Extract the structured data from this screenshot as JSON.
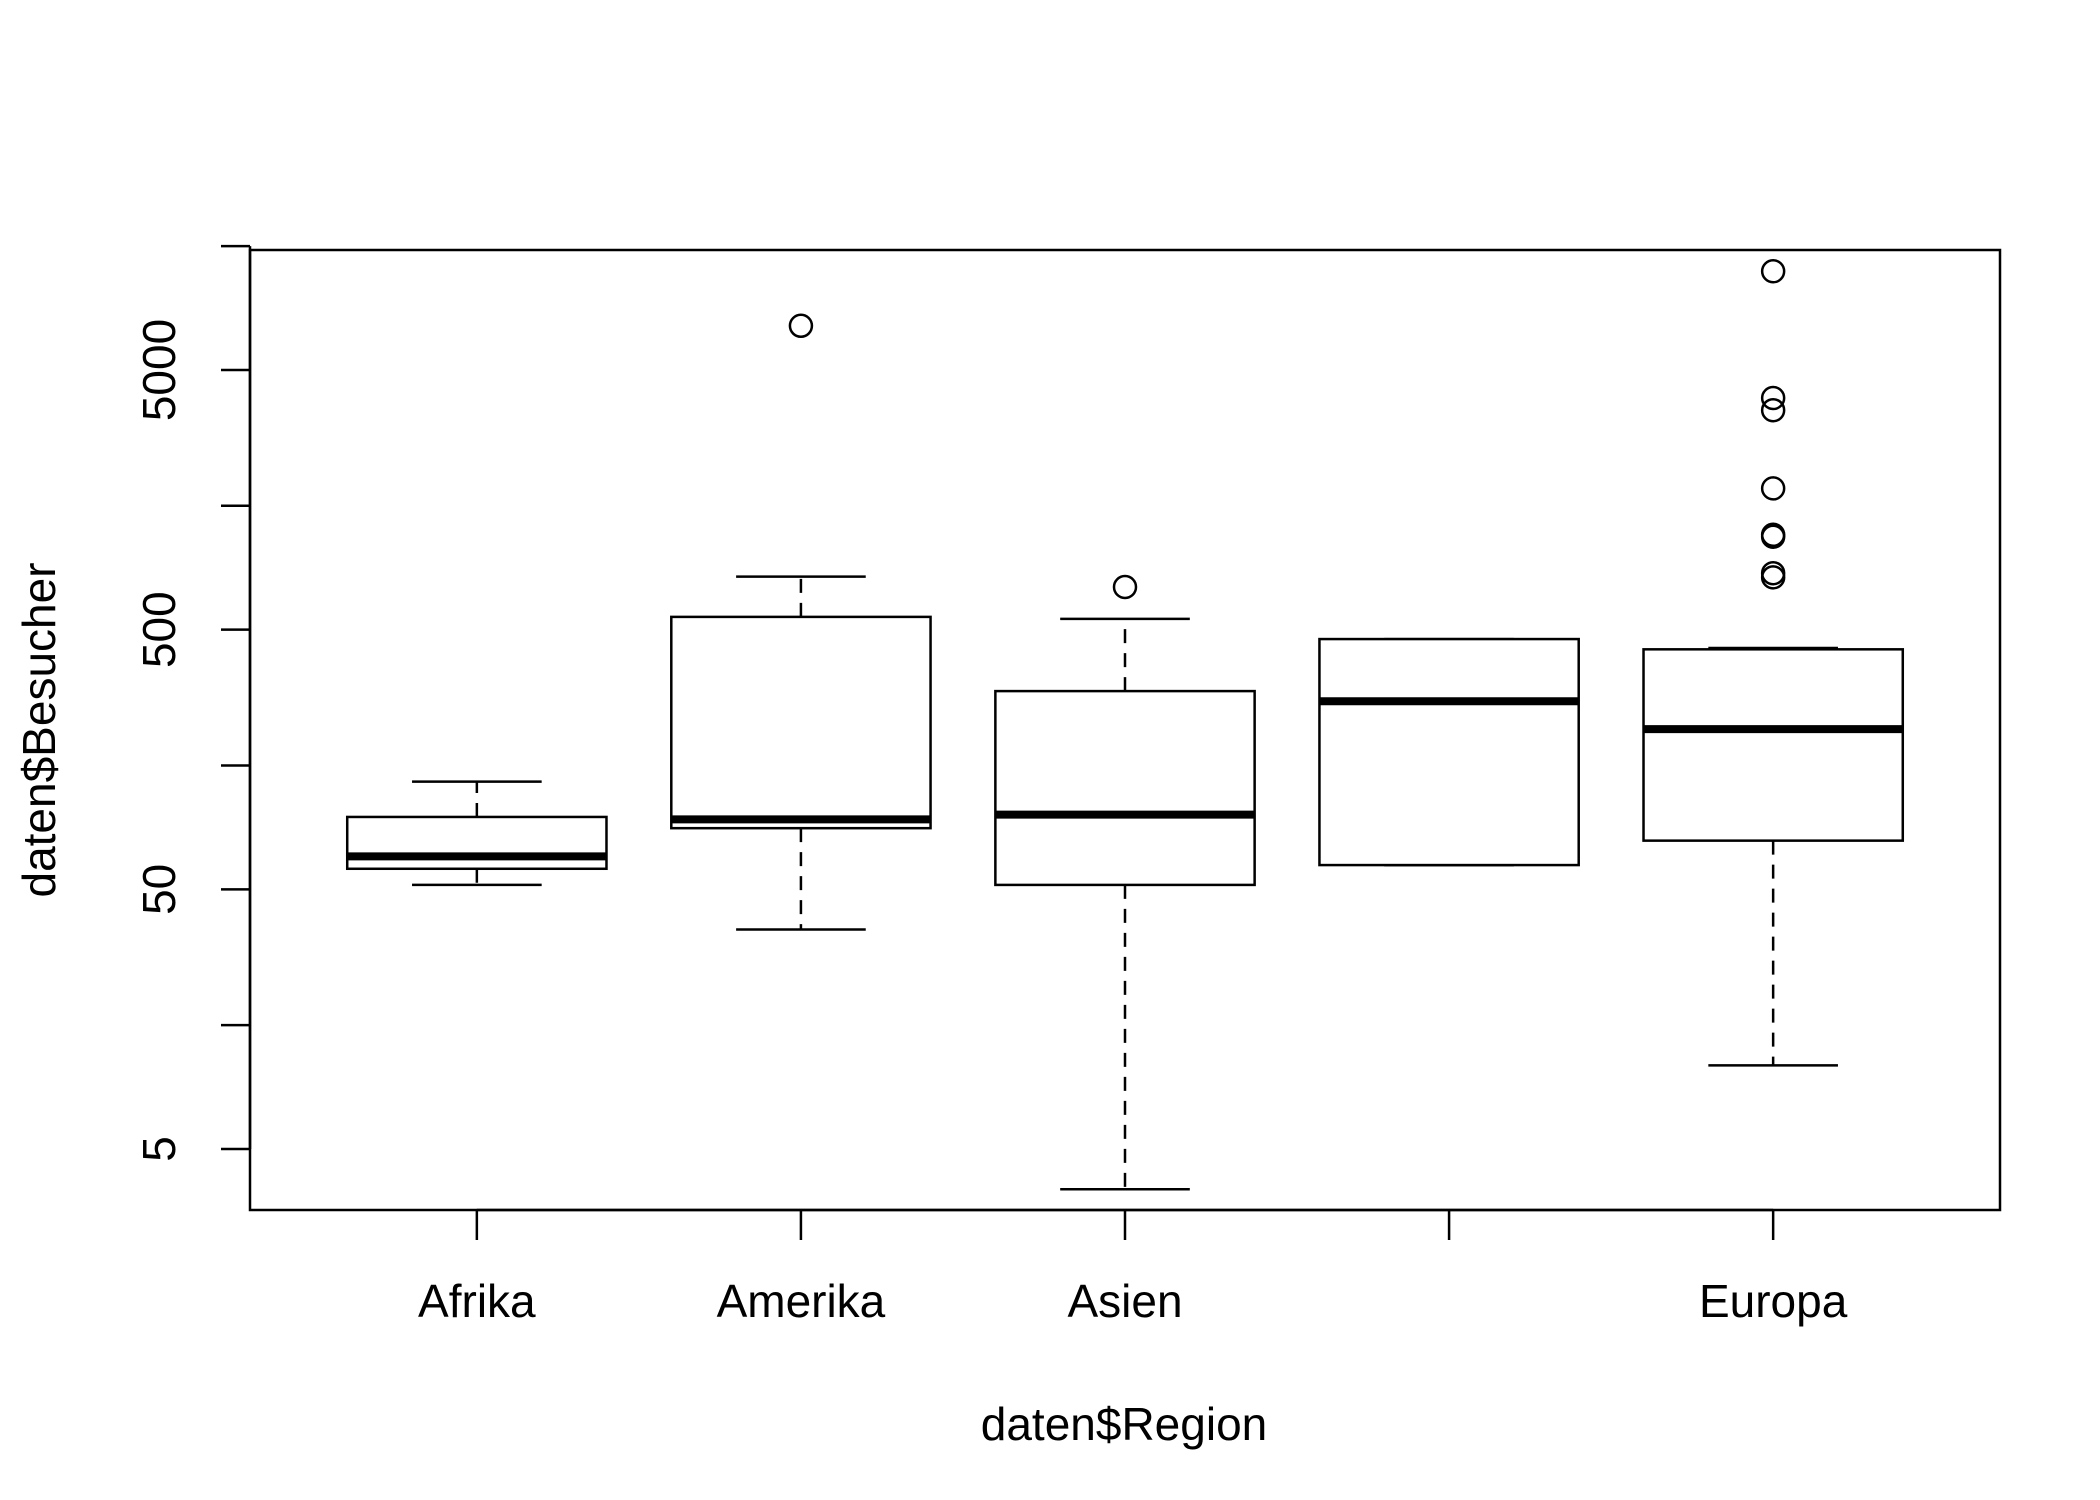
{
  "chart_data": {
    "type": "boxplot",
    "xlabel": "daten$Region",
    "ylabel": "daten$Besucher",
    "yscale": "log",
    "ylim": [
      2.8,
      14500
    ],
    "yticks": [
      5,
      15,
      50,
      150,
      500,
      1500,
      5000,
      15000
    ],
    "ytick_labels": [
      "5",
      "",
      "50",
      "",
      "500",
      "",
      "5000",
      ""
    ],
    "categories": [
      "Afrika",
      "Amerika",
      "Asien",
      "",
      "Europa"
    ],
    "groups": [
      {
        "category": "Afrika",
        "whisker_low": 52,
        "q1": 60,
        "median": 67,
        "q3": 95,
        "whisker_high": 130,
        "outliers": []
      },
      {
        "category": "Amerika",
        "whisker_low": 35,
        "q1": 86,
        "median": 93,
        "q3": 560,
        "whisker_high": 800,
        "outliers": [
          7400
        ]
      },
      {
        "category": "Asien",
        "whisker_low": 3.5,
        "q1": 52,
        "median": 97,
        "q3": 290,
        "whisker_high": 550,
        "outliers": [
          730
        ]
      },
      {
        "category": "",
        "whisker_low": 62,
        "q1": 62,
        "median": 265,
        "q3": 460,
        "whisker_high": 460,
        "outliers": []
      },
      {
        "category": "Europa",
        "whisker_low": 10.5,
        "q1": 77,
        "median": 207,
        "q3": 420,
        "whisker_high": 425,
        "outliers": [
          12000,
          3900,
          3500,
          1750,
          1160,
          1140,
          825,
          795
        ]
      }
    ]
  }
}
